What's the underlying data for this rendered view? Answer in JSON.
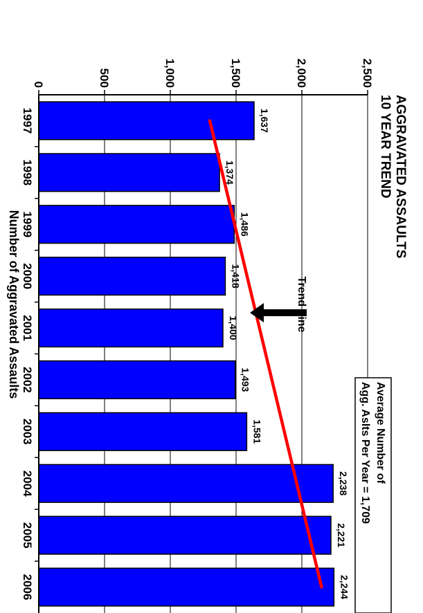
{
  "chart_data": {
    "type": "bar",
    "orientation": "horizontal",
    "title": "AGGRAVATED ASSAULTS",
    "subtitle": "10 YEAR TREND",
    "ylabel": "Number of Aggravated Assaults",
    "categories": [
      "1997",
      "1998",
      "1999",
      "2000",
      "2001",
      "2002",
      "2003",
      "2004",
      "2005",
      "2006"
    ],
    "values": [
      1637,
      1374,
      1486,
      1418,
      1400,
      1493,
      1581,
      2238,
      2221,
      2244
    ],
    "data_labels": [
      "1,637",
      "1,374",
      "1,486",
      "1,418",
      "1,400",
      "1,493",
      "1,581",
      "2,238",
      "2,221",
      "2,244"
    ],
    "ylim": [
      0,
      2500
    ],
    "ticks": [
      0,
      500,
      1000,
      1500,
      2000,
      2500
    ],
    "tick_labels": [
      "0",
      "500",
      "1,000",
      "1,500",
      "2,000",
      "2,500"
    ],
    "grid": true,
    "trend_line": {
      "start": 1300,
      "end": 2150
    },
    "colors": {
      "bar": "#0000ff",
      "trend": "#ff0000",
      "arrow": "#000000"
    },
    "annotations": {
      "trend_label": "Trend Line",
      "average_line1": "Average Number of",
      "average_line2": "Agg. Aslts Per Year = 1,709"
    }
  }
}
